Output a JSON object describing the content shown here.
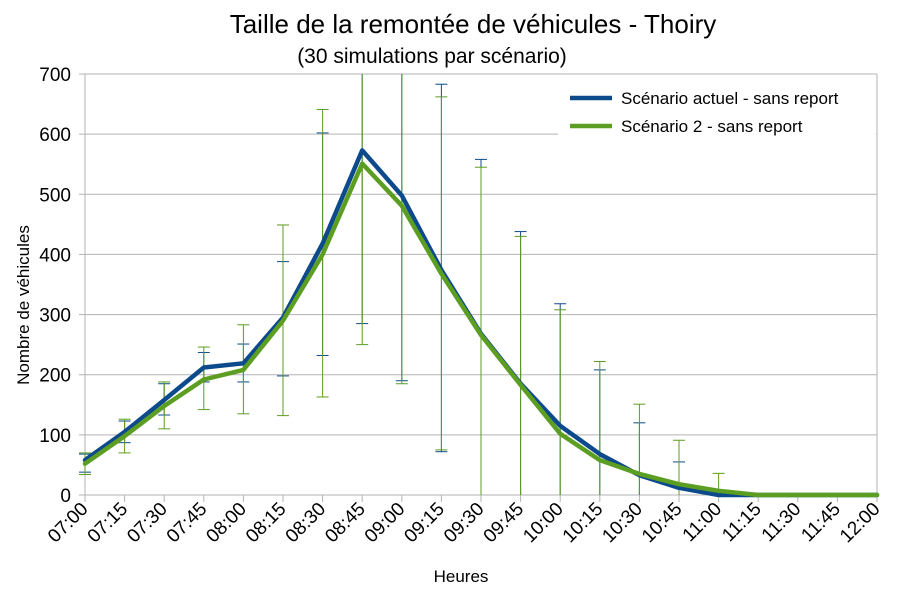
{
  "chart_data": {
    "type": "line",
    "title": "Taille de la remontée de véhicules - Thoiry",
    "subtitle": "(30 simulations par scénario)",
    "xlabel": "Heures",
    "ylabel": "Nombre de véhicules",
    "ylim": [
      0,
      700
    ],
    "yticks": [
      0,
      100,
      200,
      300,
      400,
      500,
      600,
      700
    ],
    "grid": true,
    "legend_position": "top-right",
    "categories": [
      "07:00",
      "07:15",
      "07:30",
      "07:45",
      "08:00",
      "08:15",
      "08:30",
      "08:45",
      "09:00",
      "09:15",
      "09:30",
      "09:45",
      "10:00",
      "10:15",
      "10:30",
      "10:45",
      "11:00",
      "11:15",
      "11:30",
      "11:45",
      "12:00"
    ],
    "series": [
      {
        "name": "Scénario actuel - sans report",
        "color": "#0d4a8c",
        "values": [
          58,
          105,
          158,
          212,
          219,
          295,
          418,
          573,
          498,
          374,
          268,
          185,
          115,
          68,
          33,
          12,
          0,
          0,
          0,
          0,
          0
        ],
        "error_low": [
          38,
          87,
          133,
          188,
          188,
          198,
          232,
          285,
          190,
          72,
          0,
          0,
          0,
          0,
          0,
          0,
          0,
          0,
          0,
          0,
          0
        ],
        "error_high": [
          68,
          123,
          185,
          237,
          251,
          388,
          602,
          700,
          700,
          683,
          558,
          438,
          318,
          208,
          120,
          55,
          0,
          0,
          0,
          0,
          0
        ]
      },
      {
        "name": "Scénario 2 - sans report",
        "color": "#5b9e21",
        "values": [
          52,
          98,
          148,
          192,
          208,
          290,
          400,
          551,
          481,
          368,
          266,
          183,
          102,
          58,
          35,
          18,
          7,
          0,
          0,
          0,
          0
        ],
        "error_low": [
          34,
          70,
          110,
          142,
          135,
          132,
          163,
          250,
          185,
          75,
          0,
          0,
          0,
          0,
          0,
          0,
          0,
          0,
          0,
          0,
          0
        ],
        "error_high": [
          70,
          126,
          188,
          246,
          283,
          449,
          641,
          700,
          700,
          662,
          545,
          430,
          308,
          222,
          151,
          91,
          36,
          0,
          0,
          0,
          0
        ]
      }
    ]
  }
}
